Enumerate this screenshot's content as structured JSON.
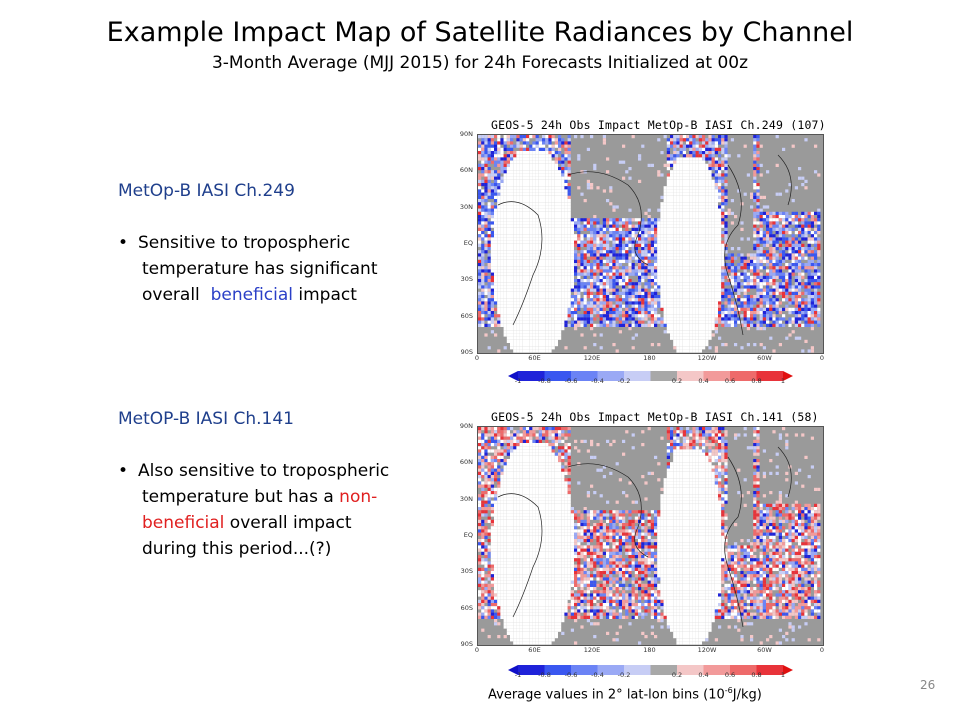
{
  "title": "Example Impact Map of Satellite Radiances by Channel",
  "subtitle": "3-Month Average (MJJ 2015) for 24h Forecasts Initialized at 00z",
  "block1": {
    "heading": "MetOp-B IASI Ch.249",
    "bullet_lines": [
      "Sensitive to tropospheric",
      "temperature has significant"
    ],
    "line3_pre": "overall  ",
    "line3_colored": "beneficial",
    "line3_post": " impact"
  },
  "block2": {
    "heading": "MetOP-B IASI Ch.141",
    "line1": "Also sensitive to tropospheric",
    "line2_pre": "temperature but has a ",
    "line2_colored": "non-",
    "line3_colored": "beneficial",
    "line3_post": " overall impact",
    "line4": "during this period...(?)"
  },
  "map1": {
    "title": "GEOS-5  24h  Obs Impact    MetOp-B  IASI  Ch.249  (107)",
    "bias": "beneficial"
  },
  "map2": {
    "title": "GEOS-5  24h  Obs Impact    MetOp-B  IASI  Ch.141  (58)",
    "bias": "nonbeneficial"
  },
  "lat_ticks": [
    "90N",
    "60N",
    "30N",
    "EQ",
    "30S",
    "60S",
    "90S"
  ],
  "lon_ticks": [
    "0",
    "60E",
    "120E",
    "180",
    "120W",
    "60W",
    "0"
  ],
  "colorbar_ticks": [
    "-1",
    "-0.8",
    "-0.6",
    "-0.4",
    "-0.2",
    "0.2",
    "0.4",
    "0.6",
    "0.8",
    "1"
  ],
  "colors": {
    "beneficial": "#1a2ee0",
    "nonbeneficial": "#e8232a",
    "land_gray": "#9a9a9a",
    "nodata": "#ffffff",
    "heading_blue": "#1f3f8c"
  },
  "caption": {
    "pre": "Average values in 2° lat-lon bins (10",
    "sup": "-6",
    "post": "J/kg)"
  },
  "page_number": "26"
}
